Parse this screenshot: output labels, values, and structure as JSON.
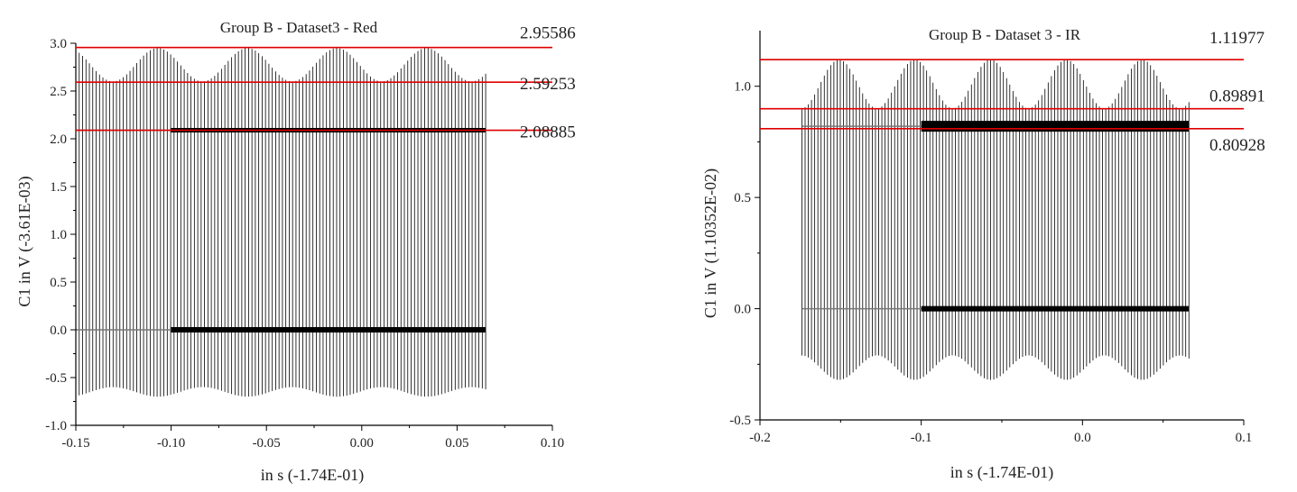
{
  "colors": {
    "signal": "#000000",
    "refline": "#e00000",
    "axis": "#000000"
  },
  "chart_data": [
    {
      "type": "line",
      "title": "Group B - Dataset3 - Red",
      "xlabel": "in s (-1.74E-01)",
      "ylabel": "C1 in V (-3.61E-03)",
      "xlim": [
        -0.15,
        0.1
      ],
      "ylim": [
        -1.0,
        3.0
      ],
      "xticks": [
        "-0.15",
        "-0.10",
        "-0.05",
        "0.00",
        "0.05",
        "0.10"
      ],
      "xtick_values": [
        -0.15,
        -0.1,
        -0.05,
        0.0,
        0.05,
        0.1
      ],
      "yticks": [
        "-1.0",
        "-0.5",
        "0.0",
        "0.5",
        "1.0",
        "1.5",
        "2.0",
        "2.5",
        "3.0"
      ],
      "ytick_values": [
        -1.0,
        -0.5,
        0.0,
        0.5,
        1.0,
        1.5,
        2.0,
        2.5,
        3.0
      ],
      "reference_lines": [
        {
          "value": 2.95586,
          "label": "2.95586"
        },
        {
          "value": 2.59253,
          "label": "2.59253"
        },
        {
          "value": 2.08885,
          "label": "2.08885"
        }
      ],
      "signal": {
        "x_start": -0.15,
        "x_end": 0.065,
        "dense_from": -0.1,
        "pulses": 122,
        "baseline": 0.0,
        "plateau": 2.09,
        "upper_envelope": [
          2.95,
          2.6
        ],
        "lower_envelope": [
          -0.7,
          -0.6
        ],
        "envelope_period": 0.047,
        "envelope_peak_x": -0.107
      }
    },
    {
      "type": "line",
      "title": "Group B - Dataset 3 - IR",
      "xlabel": "in s (-1.74E-01)",
      "ylabel": "C1 in V (1.10352E-02)",
      "xlim": [
        -0.2,
        0.1
      ],
      "ylim": [
        -0.5,
        1.25
      ],
      "xticks": [
        "-0.2",
        "-0.1",
        "0.0",
        "0.1"
      ],
      "xtick_values": [
        -0.2,
        -0.1,
        0.0,
        0.1
      ],
      "yticks": [
        "-0.5",
        "0.0",
        "0.5",
        "1.0"
      ],
      "ytick_values": [
        -0.5,
        0.0,
        0.5,
        1.0
      ],
      "reference_lines": [
        {
          "value": 1.11977,
          "label": "1.11977"
        },
        {
          "value": 0.89891,
          "label": "0.89891"
        },
        {
          "value": 0.80928,
          "label": "0.80928"
        }
      ],
      "signal": {
        "x_start": -0.174,
        "x_end": 0.066,
        "dense_from": -0.1,
        "pulses": 122,
        "baseline": 0.0,
        "plateau": 0.82,
        "upper_envelope": [
          1.12,
          0.9
        ],
        "lower_envelope": [
          -0.32,
          -0.21
        ],
        "envelope_period": 0.047,
        "envelope_peak_x": -0.151
      }
    }
  ]
}
